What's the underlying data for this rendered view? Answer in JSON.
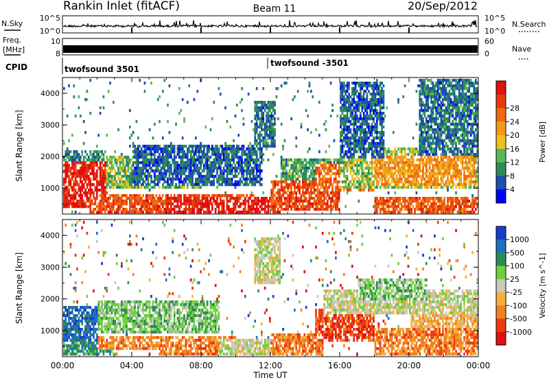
{
  "header": {
    "station": "Rankin Inlet (fitACF)",
    "beam": "Beam 11",
    "date": "20/Sep/2012"
  },
  "noise_panel": {
    "left_label": "N.Sky",
    "left_ticks": [
      "10^5",
      "10^0"
    ],
    "right_ticks": [
      "10^5",
      "10^0"
    ],
    "right_label": "N.Search",
    "right_legend_style": "dotted"
  },
  "freq_panel": {
    "left_label_top": "Freq.",
    "left_label_unit": "[MHz]",
    "left_ticks": [
      "10",
      "8"
    ],
    "right_ticks": [
      "60",
      "0"
    ],
    "right_label": "Nave",
    "right_legend_style": "dotted"
  },
  "cpid_panel": {
    "label": "CPID",
    "entries": [
      "twofsound 3501",
      "twofsound -3501"
    ]
  },
  "colors": {
    "power_scale": [
      "#0000ff",
      "#1c4fb0",
      "#2e8b57",
      "#58b858",
      "#f0c020",
      "#f29a1a",
      "#ef6a10",
      "#e83a10",
      "#e01010"
    ],
    "velocity_scale": [
      "#1a3ccc",
      "#1f6fc0",
      "#2e8b57",
      "#6fcf3f",
      "#c8c8bc",
      "#f5b03a",
      "#f08020",
      "#ee3a14",
      "#e01010"
    ]
  },
  "chart_data": [
    {
      "type": "heatmap",
      "title": "",
      "xlabel": "",
      "ylabel": "Slant Range [km]",
      "x_ticks": [
        "00:00",
        "04:00",
        "08:00",
        "12:00",
        "16:00",
        "20:00",
        "00:00"
      ],
      "y_ticks": [
        "1000",
        "2000",
        "3000",
        "4000"
      ],
      "ylim": [
        180,
        4500
      ],
      "xlim_hours": [
        0,
        24
      ],
      "colorbar": {
        "label": "Power [dB]",
        "tick_labels": [
          "4",
          "8",
          "12",
          "16",
          "20",
          "24",
          "28"
        ],
        "range": [
          0,
          30
        ]
      },
      "regions": [
        {
          "t0": 0.0,
          "t1": 2.6,
          "r0": 400,
          "r1": 1900,
          "level": 27
        },
        {
          "t0": 0.0,
          "t1": 2.4,
          "r0": 1900,
          "r1": 2200,
          "level": 8
        },
        {
          "t0": 1.5,
          "t1": 11.0,
          "r0": 180,
          "r1": 850,
          "level": 24
        },
        {
          "t0": 2.5,
          "t1": 8.0,
          "r0": 1000,
          "r1": 2100,
          "level": 12
        },
        {
          "t0": 4.0,
          "t1": 11.5,
          "r0": 1100,
          "r1": 2400,
          "level": 6
        },
        {
          "t0": 6.0,
          "t1": 12.5,
          "r0": 180,
          "r1": 800,
          "level": 28
        },
        {
          "t0": 11.0,
          "t1": 12.3,
          "r0": 2300,
          "r1": 3800,
          "level": 7
        },
        {
          "t0": 12.0,
          "t1": 16.0,
          "r0": 300,
          "r1": 1300,
          "level": 24
        },
        {
          "t0": 12.5,
          "t1": 17.0,
          "r0": 1300,
          "r1": 2000,
          "level": 10
        },
        {
          "t0": 14.5,
          "t1": 18.0,
          "r0": 900,
          "r1": 1800,
          "level": 22
        },
        {
          "t0": 16.0,
          "t1": 24.0,
          "r0": 1000,
          "r1": 2300,
          "level": 13
        },
        {
          "t0": 18.0,
          "t1": 23.8,
          "r0": 1100,
          "r1": 2100,
          "level": 19
        },
        {
          "t0": 18.0,
          "t1": 24.0,
          "r0": 180,
          "r1": 800,
          "level": 23
        },
        {
          "t0": 16.0,
          "t1": 18.5,
          "r0": 2000,
          "r1": 4400,
          "level": 6
        },
        {
          "t0": 20.5,
          "t1": 24.0,
          "r0": 2100,
          "r1": 4500,
          "level": 7
        }
      ]
    },
    {
      "type": "heatmap",
      "title": "",
      "xlabel": "Time UT",
      "ylabel": "Slant Range [km]",
      "x_ticks": [
        "00:00",
        "04:00",
        "08:00",
        "12:00",
        "16:00",
        "20:00",
        "00:00"
      ],
      "y_ticks": [
        "1000",
        "2000",
        "3000",
        "4000"
      ],
      "ylim": [
        180,
        4500
      ],
      "xlim_hours": [
        0,
        24
      ],
      "colorbar": {
        "label": "Velocity [m s^-1]",
        "tick_labels": [
          "1000",
          "500",
          "100",
          "25",
          "-25",
          "-100",
          "-500",
          "-1000"
        ],
        "range": [
          -1000,
          1000
        ]
      },
      "regions": [
        {
          "t0": 0.0,
          "t1": 2.0,
          "r0": 600,
          "r1": 1800,
          "level": 1
        },
        {
          "t0": 0.0,
          "t1": 3.0,
          "r0": 180,
          "r1": 700,
          "level": 2
        },
        {
          "t0": 2.0,
          "t1": 6.5,
          "r0": 400,
          "r1": 900,
          "level": 6
        },
        {
          "t0": 2.0,
          "t1": 9.0,
          "r0": 1000,
          "r1": 2000,
          "level": 3
        },
        {
          "t0": 5.5,
          "t1": 10.0,
          "r0": 180,
          "r1": 850,
          "level": 6
        },
        {
          "t0": 9.0,
          "t1": 12.0,
          "r0": 180,
          "r1": 800,
          "level": 4
        },
        {
          "t0": 11.0,
          "t1": 12.5,
          "r0": 2500,
          "r1": 4000,
          "level": 4
        },
        {
          "t0": 12.0,
          "t1": 15.0,
          "r0": 180,
          "r1": 1000,
          "level": 6
        },
        {
          "t0": 14.5,
          "t1": 18.0,
          "r0": 700,
          "r1": 1700,
          "level": 7
        },
        {
          "t0": 15.0,
          "t1": 24.0,
          "r0": 1600,
          "r1": 2300,
          "level": 4
        },
        {
          "t0": 17.0,
          "t1": 21.0,
          "r0": 2000,
          "r1": 2700,
          "level": 3
        },
        {
          "t0": 18.0,
          "t1": 24.0,
          "r0": 180,
          "r1": 1100,
          "level": 6
        },
        {
          "t0": 20.0,
          "t1": 24.0,
          "r0": 1100,
          "r1": 1600,
          "level": 5
        }
      ]
    }
  ]
}
